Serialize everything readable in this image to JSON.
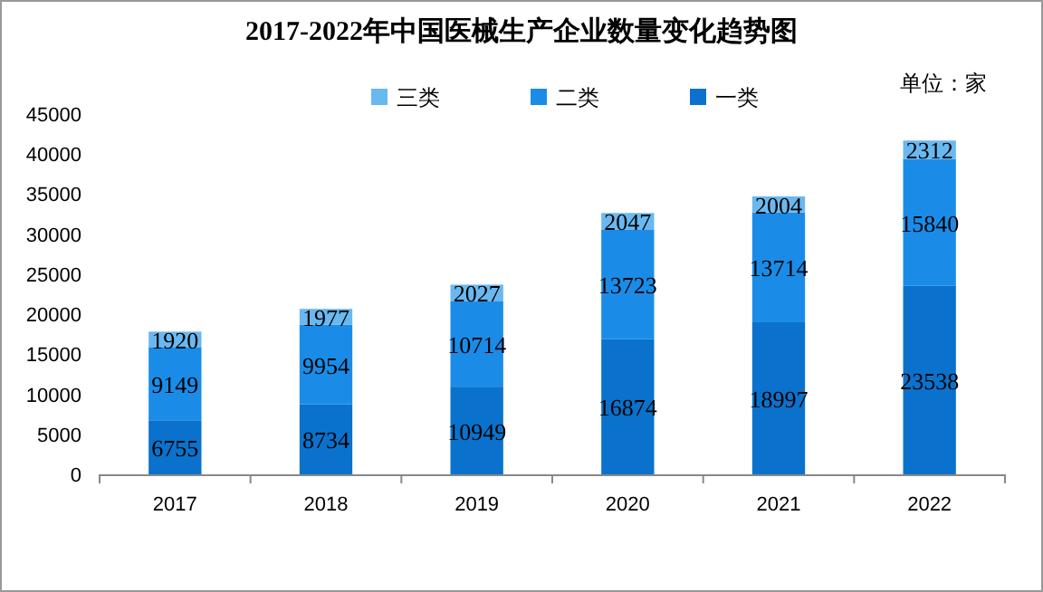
{
  "chart_data": {
    "type": "bar",
    "title": "2017-2022年中国医械生产企业数量变化趋势图",
    "annotations": [
      "单位：家"
    ],
    "categories": [
      "2017",
      "2018",
      "2019",
      "2020",
      "2021",
      "2022"
    ],
    "stacked": true,
    "series": [
      {
        "name": "一类",
        "color": "#0a72cc",
        "values": [
          6755,
          8734,
          10949,
          16874,
          18997,
          23538
        ]
      },
      {
        "name": "二类",
        "color": "#1a8ce8",
        "values": [
          9149,
          9954,
          10714,
          13723,
          13714,
          15840
        ]
      },
      {
        "name": "三类",
        "color": "#6ab8f0",
        "values": [
          1920,
          1977,
          2027,
          2047,
          2004,
          2312
        ]
      }
    ],
    "ylim": [
      0,
      45000
    ],
    "yticks": [
      0,
      5000,
      10000,
      15000,
      20000,
      25000,
      30000,
      35000,
      40000,
      45000
    ],
    "data_labels": true,
    "legend": "top",
    "grid": false
  }
}
